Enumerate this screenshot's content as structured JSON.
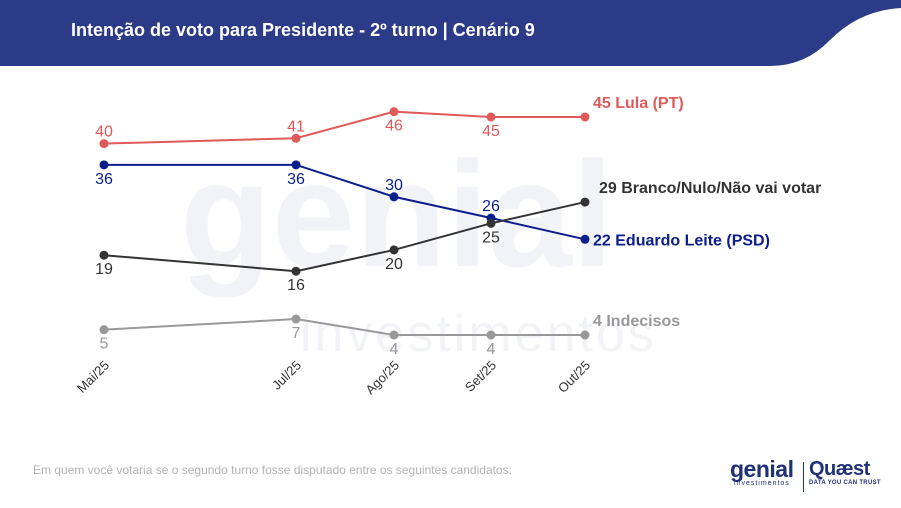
{
  "header": {
    "title": "Intenção de voto para Presidente - 2º turno | Cenário 9",
    "bg_color": "#2b3b87"
  },
  "footnote": "Em quem você votaria se o segundo turno fosse disputado entre os seguintes candidatos:",
  "logos": {
    "genial": {
      "word": "genial",
      "sub": "investimentos"
    },
    "quaest": {
      "word": "Quæst",
      "sub": "DATA YOU CAN TRUST"
    }
  },
  "chart_data": {
    "type": "line",
    "title": "",
    "xlabel": "",
    "ylabel": "",
    "ylim": [
      0,
      50
    ],
    "grid": false,
    "legend": "end-of-line labels",
    "x": [
      "Mai/25",
      "Jul/25",
      "Ago/25",
      "Set/25",
      "Out/25"
    ],
    "series": [
      {
        "name": "Lula (PT)",
        "values": [
          40,
          41,
          46,
          45,
          45
        ],
        "color": "#e05a5a",
        "end_label": "45 Lula (PT)"
      },
      {
        "name": "Eduardo Leite (PSD)",
        "values": [
          36,
          36,
          30,
          26,
          22
        ],
        "color": "#0a1e8c",
        "end_label": "22 Eduardo Leite (PSD)"
      },
      {
        "name": "Branco/Nulo/Não vai votar",
        "values": [
          19,
          16,
          20,
          25,
          29
        ],
        "color": "#333333",
        "end_label": "29 Branco/Nulo/Não vai votar"
      },
      {
        "name": "Indecisos",
        "values": [
          5,
          7,
          4,
          4,
          4
        ],
        "color": "#999999",
        "end_label": "4 Indecisos"
      }
    ]
  }
}
